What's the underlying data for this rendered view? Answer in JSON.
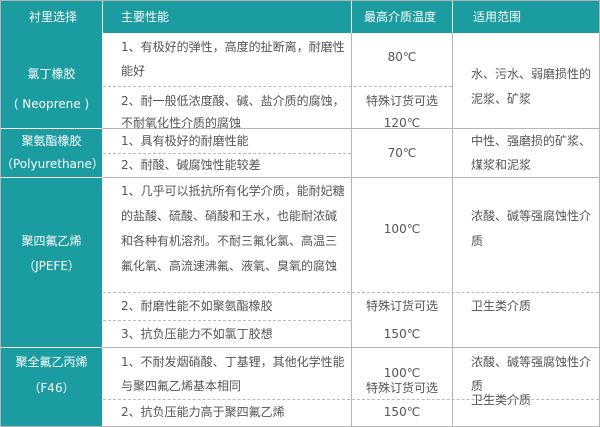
{
  "header": [
    "衬里选择",
    "主要性能",
    "最高介质温度",
    "适用范围"
  ],
  "rows": [
    {
      "material": [
        "氯丁橡胶",
        "( Neoprene )"
      ],
      "properties": [
        "1、有极好的弹性，高度的扯断离，耐磨性",
        "能好",
        "2、耐一般低浓度酸、碱、盐介质的腐蚀，",
        "不耐氧化性介质的腐蚀"
      ],
      "temperature": [
        "80℃",
        "特殊订货可选",
        "120℃"
      ],
      "application": [
        "水、污水、弱磨损性的",
        "泥浆、矿浆"
      ]
    },
    {
      "material": [
        "聚氨酯橡胶",
        "（Polyurethane）"
      ],
      "properties": [
        "1、具有极好的耐磨性能",
        "2、耐酸、碱腐蚀性能较差"
      ],
      "temperature": [
        "70℃"
      ],
      "application": [
        "中性、强磨损的矿浆、",
        "煤浆和泥浆"
      ]
    },
    {
      "material": [
        "聚四氟乙烯",
        "（JPEFE）"
      ],
      "properties": [
        "1、几乎可以抵抗所有化学介质，能耐妃糖",
        "的盐酸、硫酸、硝酸和王水，也能耐浓碱",
        "和各种有机溶剂。不耐三氟化氯、高温三",
        "氟化氧、高流速沸氟、液氧、臭氧的腐蚀",
        "2、耐磨性能不如聚氨酯橡胶",
        "3、抗负压能力不如氯丁胶想"
      ],
      "temperature": [
        "100℃",
        "特殊订货可选",
        "150℃"
      ],
      "application": [
        "浓酸、碱等强腐蚀性介",
        "质",
        "卫生类介质"
      ]
    },
    {
      "material": [
        "聚全氟乙丙烯",
        "（F46）"
      ],
      "properties": [
        "1、不耐发烟硝酸、丁基锂，其他化学性能",
        "与聚四氟乙烯基本相同",
        "2、抗负压能力高于聚四氟乙烯"
      ],
      "temperature": [
        "100℃",
        "特殊订货可选",
        "150℃"
      ],
      "application": [
        "浓酸、碱等强腐蚀性介",
        "质",
        "卫生类介质"
      ]
    }
  ],
  "colors": {
    "header": "#1a9ca1",
    "text": "#555555"
  }
}
